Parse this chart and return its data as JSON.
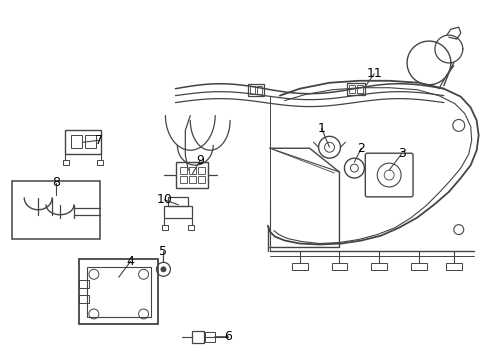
{
  "bg_color": "#ffffff",
  "line_color": "#444444",
  "text_color": "#000000",
  "fig_width": 4.9,
  "fig_height": 3.6,
  "dpi": 100
}
